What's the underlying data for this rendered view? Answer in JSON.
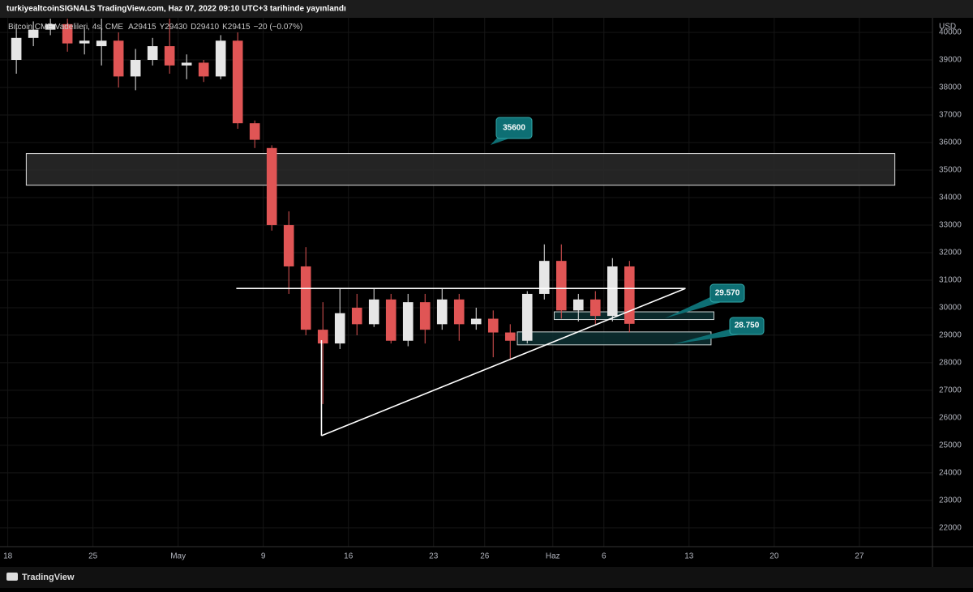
{
  "header": {
    "text": "turkiyealtcoinSIGNALS TradingView.com, Haz 07, 2022 09:10 UTC+3 tarihinde yayınlandı"
  },
  "footer": {
    "brand": "TradingView"
  },
  "chart_data": {
    "type": "candlestick",
    "symbol": "Bitcoin CME Vadelileri, 4s, CME",
    "legend_values": [
      "A29415",
      "Y29430",
      "D29410",
      "K29415",
      "−20 (−0.07%)"
    ],
    "currency": "USD",
    "x": [
      "2022-04-18",
      "2022-04-19",
      "2022-04-20",
      "2022-04-21",
      "2022-04-22",
      "2022-04-25",
      "2022-04-26",
      "2022-04-27",
      "2022-04-28",
      "2022-04-29",
      "2022-05-02",
      "2022-05-03",
      "2022-05-04",
      "2022-05-05",
      "2022-05-06",
      "2022-05-09",
      "2022-05-10",
      "2022-05-11",
      "2022-05-12",
      "2022-05-13",
      "2022-05-16",
      "2022-05-17",
      "2022-05-18",
      "2022-05-19",
      "2022-05-20",
      "2022-05-23",
      "2022-05-24",
      "2022-05-25",
      "2022-05-26",
      "2022-05-27",
      "2022-05-30",
      "2022-05-31",
      "2022-06-01",
      "2022-06-02",
      "2022-06-03",
      "2022-06-06",
      "2022-06-07"
    ],
    "open": [
      39000,
      39800,
      40100,
      40300,
      39600,
      39500,
      39700,
      38400,
      39000,
      39500,
      38800,
      38900,
      38400,
      39700,
      36700,
      35800,
      33000,
      31500,
      29200,
      28700,
      30000,
      29400,
      30300,
      28800,
      30200,
      29400,
      30300,
      29400,
      29600,
      29100,
      28800,
      30500,
      31700,
      29900,
      30300,
      29700,
      31500
    ],
    "high": [
      40300,
      40400,
      40500,
      40500,
      40200,
      40500,
      40000,
      39400,
      39800,
      40500,
      39200,
      39000,
      39900,
      40000,
      36800,
      35900,
      33500,
      32200,
      30200,
      30700,
      30500,
      30700,
      30500,
      30500,
      30500,
      30700,
      30500,
      30000,
      29900,
      29400,
      30600,
      32300,
      32300,
      30500,
      30600,
      31800,
      31700
    ],
    "low": [
      38500,
      39500,
      39900,
      39300,
      39200,
      38800,
      38000,
      37900,
      38800,
      38500,
      38300,
      38200,
      38300,
      36500,
      35800,
      32800,
      30500,
      29000,
      26500,
      28500,
      29000,
      29300,
      28700,
      28600,
      28700,
      29200,
      28800,
      29200,
      28200,
      28100,
      28700,
      30300,
      29600,
      29500,
      29400,
      29500,
      29100
    ],
    "close": [
      39800,
      40100,
      40300,
      39600,
      39700,
      39700,
      38400,
      39000,
      39500,
      38800,
      38900,
      38400,
      39700,
      36700,
      36100,
      33000,
      31500,
      29200,
      28700,
      29800,
      29400,
      30300,
      28800,
      30200,
      29200,
      30300,
      29400,
      29600,
      29100,
      28800,
      30500,
      31700,
      29900,
      30300,
      29700,
      31500,
      29415
    ],
    "up_color": "#e6e6e6",
    "down_color": "#e05555",
    "xlim": [
      "2022-04-15T13:00",
      "2022-07-01T07:00"
    ],
    "xticks": [
      {
        "value": "2022-04-18",
        "label": "18"
      },
      {
        "value": "2022-04-25",
        "label": "25"
      },
      {
        "value": "2022-05-01",
        "label": "May"
      },
      {
        "value": "2022-05-09",
        "label": "9"
      },
      {
        "value": "2022-05-16",
        "label": "16"
      },
      {
        "value": "2022-05-23",
        "label": "23"
      },
      {
        "value": "2022-05-26",
        "label": "26"
      },
      {
        "value": "2022-06-01",
        "label": "Haz"
      },
      {
        "value": "2022-06-06",
        "label": "6"
      },
      {
        "value": "2022-06-13",
        "label": "13"
      },
      {
        "value": "2022-06-20",
        "label": "20"
      },
      {
        "value": "2022-06-27",
        "label": "27"
      }
    ],
    "ylim": [
      21320,
      40530
    ],
    "yticks": [
      22000,
      23000,
      24000,
      25000,
      26000,
      27000,
      28000,
      29000,
      30000,
      31000,
      32000,
      33000,
      34000,
      35000,
      36000,
      37000,
      38000,
      39000,
      40000
    ],
    "grid": true,
    "zones": [
      {
        "x": [
          "2022-04-19T02:00",
          "2022-06-29T02:00"
        ],
        "y": [
          34450,
          35600
        ],
        "fill": "#2a2a2a",
        "stroke": "#e0e0e0"
      },
      {
        "x": [
          "2022-06-01T02:00",
          "2022-06-14T11:00"
        ],
        "y": [
          29570,
          29850
        ],
        "fill": "#0d3033",
        "stroke": "#cfd8d8"
      },
      {
        "x": [
          "2022-05-27T22:00",
          "2022-06-14T07:00"
        ],
        "y": [
          28650,
          29120
        ],
        "fill": "#0d3033",
        "stroke": "#cfd8d8"
      }
    ],
    "lines": [
      {
        "x": [
          "2022-05-05T10:00",
          "2022-06-10T19:00"
        ],
        "y": [
          30700,
          30700
        ]
      },
      {
        "x": [
          "2022-05-12T10:00",
          "2022-05-12T10:00"
        ],
        "y": [
          28820,
          25350
        ]
      },
      {
        "x": [
          "2022-05-12T10:00",
          "2022-06-10T19:00"
        ],
        "y": [
          25350,
          30700
        ]
      }
    ],
    "callouts": [
      {
        "text": "35600"
      },
      {
        "text": "29.570"
      },
      {
        "text": "28.750"
      }
    ]
  }
}
